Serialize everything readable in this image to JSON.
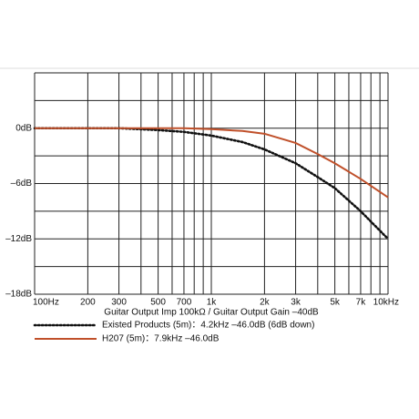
{
  "chart_data": {
    "type": "line",
    "xlabel": "Guitar Output Imp 100kΩ / Guitar Output Gain –40dB",
    "x": [
      100,
      200,
      300,
      500,
      700,
      1000,
      1500,
      2000,
      3000,
      4000,
      5000,
      7000,
      10000
    ],
    "series": [
      {
        "name": "Existed Products (5m)：4.2kHz –46.0dB (6dB down)",
        "color": "#111111",
        "dash": "dotted",
        "values": [
          0,
          0,
          0,
          -0.2,
          -0.4,
          -0.8,
          -1.5,
          -2.3,
          -3.8,
          -5.3,
          -6.5,
          -9,
          -12
        ]
      },
      {
        "name": "H207 (5m)：7.9kHz –46.0dB",
        "color": "#c0502a",
        "dash": "solid",
        "values": [
          0,
          0,
          0,
          0,
          0,
          -0.1,
          -0.3,
          -0.6,
          -1.6,
          -2.8,
          -3.8,
          -5.5,
          -7.5
        ]
      }
    ],
    "xscale": "log",
    "xlim": [
      100,
      10000
    ],
    "xticks": [
      {
        "value": 100,
        "label": "100Hz"
      },
      200,
      300,
      500,
      700,
      {
        "value": 1000,
        "label": "1k"
      },
      {
        "value": 2000,
        "label": "2k"
      },
      {
        "value": 3000,
        "label": "3k"
      },
      {
        "value": 5000,
        "label": "5k"
      },
      {
        "value": 7000,
        "label": "7k"
      },
      {
        "value": 10000,
        "label": "10kHz"
      }
    ],
    "xgrid": [
      100,
      200,
      300,
      400,
      500,
      600,
      700,
      800,
      900,
      1000,
      2000,
      3000,
      4000,
      5000,
      6000,
      7000,
      8000,
      9000,
      10000
    ],
    "ylim": [
      -18,
      6
    ],
    "yticks": [
      {
        "value": 0,
        "label": "0dB"
      },
      {
        "value": -6,
        "label": "–6dB"
      },
      {
        "value": -12,
        "label": "–12dB"
      },
      {
        "value": -18,
        "label": "–18dB"
      }
    ],
    "ygrid": [
      6,
      3,
      0,
      -3,
      -6,
      -9,
      -12,
      -15,
      -18
    ]
  }
}
